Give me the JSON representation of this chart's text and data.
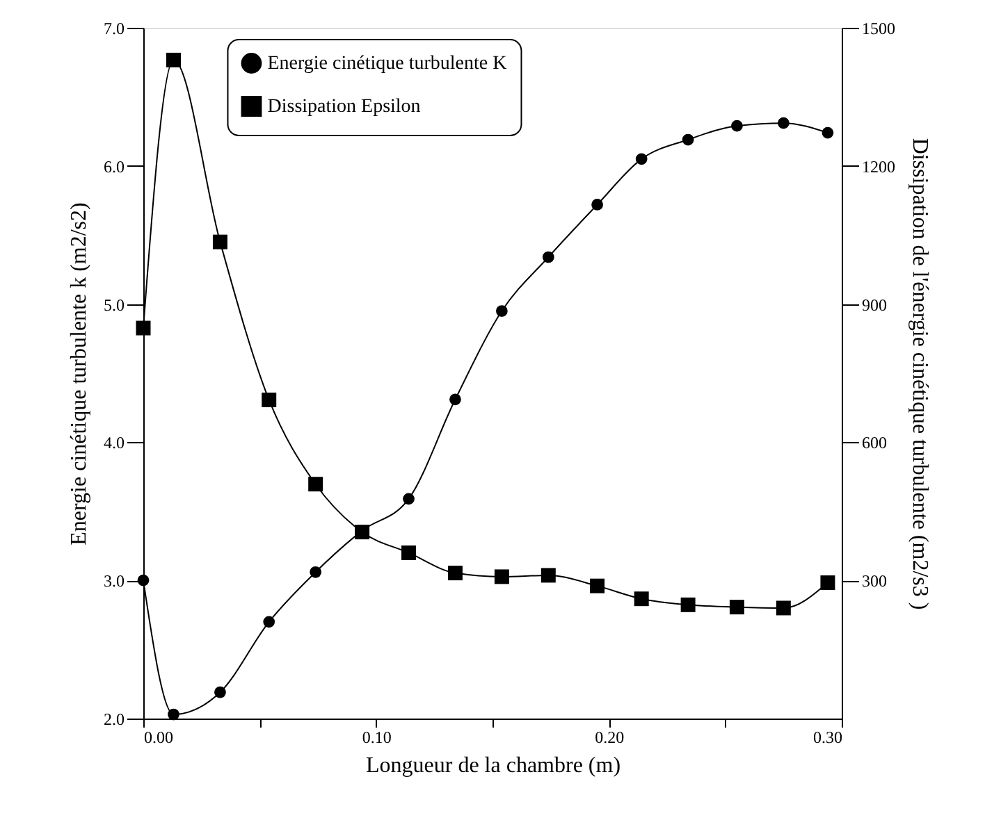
{
  "chart_data": {
    "type": "line",
    "xlabel": "Longueur de la chambre (m)",
    "ylabel": "Energie cinétique turbulente k (m2/s2)",
    "y2label": "Dissipation de l'énergie cinétique turbulente (m2/s3 )",
    "x": [
      0,
      0.013,
      0.033,
      0.054,
      0.074,
      0.094,
      0.114,
      0.134,
      0.154,
      0.174,
      0.195,
      0.214,
      0.234,
      0.255,
      0.275,
      0.294
    ],
    "series": [
      {
        "name": "Energie cinétique turbulente K",
        "color": "#000000",
        "marker": "circle",
        "values": [
          3.0,
          2.03,
          2.19,
          2.7,
          3.06,
          3.36,
          3.59,
          4.31,
          4.95,
          5.34,
          5.72,
          6.05,
          6.19,
          6.29,
          6.31,
          6.24
        ]
      },
      {
        "name": "Dissipation Epsilon",
        "color": "#000000",
        "marker": "square",
        "axis": "y2",
        "values": [
          848,
          1430,
          1035,
          692,
          509,
          405,
          360,
          316,
          308,
          311,
          288,
          260,
          247,
          242,
          240,
          295
        ]
      }
    ],
    "xlim": [
      0,
      0.3
    ],
    "xticks": [
      {
        "value": 0,
        "label": "0.00"
      },
      {
        "value": 0.05,
        "label": null
      },
      {
        "value": 0.1,
        "label": "0.10"
      },
      {
        "value": 0.15,
        "label": null
      },
      {
        "value": 0.2,
        "label": "0.20"
      },
      {
        "value": 0.25,
        "label": null
      },
      {
        "value": 0.3,
        "label": "0.30"
      }
    ],
    "ylim": [
      2,
      7
    ],
    "yticks": [
      {
        "value": 2,
        "label": "2.0"
      },
      {
        "value": 3,
        "label": "3.0"
      },
      {
        "value": 4,
        "label": "4.0"
      },
      {
        "value": 5,
        "label": "5.0"
      },
      {
        "value": 6,
        "label": "6.0"
      },
      {
        "value": 7,
        "label": "7.0"
      }
    ],
    "y2lim": [
      0,
      1500
    ],
    "y2ticks": [
      300,
      600,
      900,
      1200,
      1500
    ],
    "grid": false,
    "legend": "top",
    "line_style": "solid"
  }
}
